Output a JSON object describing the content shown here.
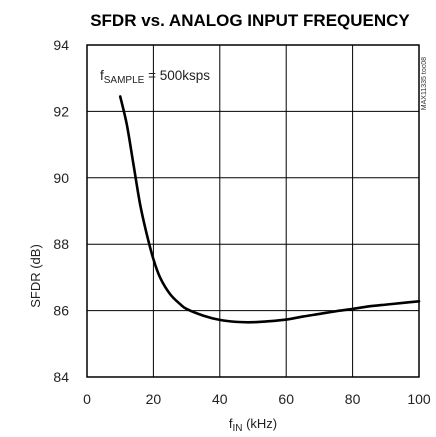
{
  "chart_data": {
    "type": "line",
    "title": "SFDR vs. ANALOG INPUT FREQUENCY",
    "xlabel": {
      "main": "f",
      "sub": "IN",
      "rest": " (kHz)"
    },
    "ylabel": "SFDR (dB)",
    "xlim": [
      0,
      100
    ],
    "ylim": [
      84,
      94
    ],
    "xticks": [
      "0",
      "20",
      "40",
      "60",
      "80",
      "100"
    ],
    "yticks": [
      "84",
      "86",
      "88",
      "90",
      "92",
      "94"
    ],
    "grid": true,
    "annotation": {
      "main": "f",
      "sub": "SAMPLE",
      "rest": " = 500ksps"
    },
    "figure_code": "MAX11335 toc08",
    "series": [
      {
        "x": [
          10,
          12,
          14,
          16,
          18,
          20,
          22,
          25,
          28,
          30,
          35,
          40,
          45,
          50,
          55,
          60,
          65,
          70,
          75,
          80,
          85,
          90,
          95,
          100
        ],
        "y": [
          92.45,
          91.6,
          90.4,
          89.2,
          88.3,
          87.55,
          87.0,
          86.5,
          86.2,
          86.05,
          85.85,
          85.72,
          85.66,
          85.65,
          85.68,
          85.73,
          85.82,
          85.9,
          85.98,
          86.05,
          86.13,
          86.18,
          86.23,
          86.28
        ]
      }
    ]
  }
}
